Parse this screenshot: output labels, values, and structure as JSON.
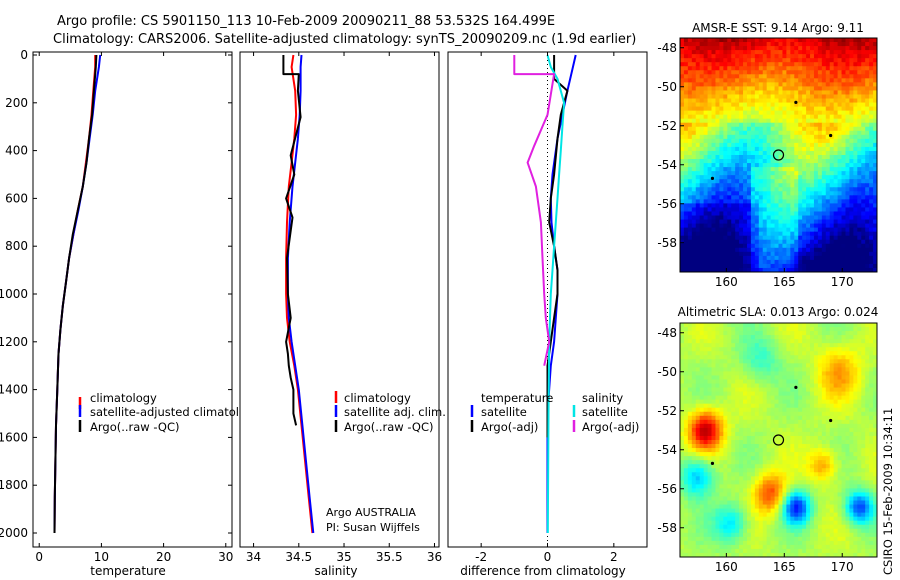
{
  "header": {
    "line1": "Argo profile: CS 5901150_113 10-Feb-2009 20090211_88 53.532S 164.499E",
    "line2": "Climatology: CARS2006. Satellite-adjusted climatology: synTS_20090209.nc (1.9d earlier)"
  },
  "side_note": "CSIRO 15-Feb-2009 10:34:11",
  "colors": {
    "climatology": "#ff0000",
    "satellite": "#0000ff",
    "argo": "#000000",
    "salinity_satellite": "#00e5e5",
    "salinity_argo": "#e020e0"
  },
  "chart_data": [
    {
      "type": "line",
      "xlabel": "temperature",
      "ylabel": "",
      "xlim": [
        -1,
        31
      ],
      "ylim": [
        2000,
        0
      ],
      "xticks": [
        0,
        10,
        20,
        30
      ],
      "yticks": [
        0,
        200,
        400,
        600,
        800,
        1000,
        1200,
        1400,
        1600,
        1800,
        2000
      ],
      "legend": [
        "climatology",
        "satellite-adjusted climatology",
        "Argo(..raw -QC)"
      ],
      "series": [
        {
          "name": "climatology",
          "color": "#ff0000",
          "x": [
            9.0,
            9.0,
            8.7,
            8.4,
            8.0,
            7.5,
            7.0,
            6.2,
            5.5,
            4.8,
            4.3,
            3.8,
            3.4,
            3.1,
            2.9,
            2.7,
            2.6,
            2.5,
            2.45
          ],
          "y": [
            0,
            50,
            150,
            250,
            350,
            450,
            550,
            650,
            750,
            850,
            950,
            1050,
            1150,
            1250,
            1400,
            1550,
            1700,
            1850,
            2000
          ]
        },
        {
          "name": "satellite-adjusted climatology",
          "color": "#0000ff",
          "x": [
            9.8,
            9.6,
            9.0,
            8.6,
            8.1,
            7.6,
            7.0,
            6.3,
            5.5,
            4.8,
            4.3,
            3.8,
            3.4,
            3.1,
            2.9,
            2.7,
            2.6,
            2.5,
            2.45
          ],
          "y": [
            0,
            50,
            150,
            250,
            350,
            450,
            550,
            650,
            750,
            850,
            950,
            1050,
            1150,
            1250,
            1400,
            1550,
            1700,
            1850,
            2000
          ]
        },
        {
          "name": "Argo(..raw -QC)",
          "color": "#000000",
          "x": [
            9.2,
            9.1,
            8.8,
            8.5,
            8.0,
            7.6,
            7.0,
            6.2,
            5.4,
            4.8,
            4.3,
            3.8,
            3.4,
            3.1,
            2.9,
            2.7,
            2.6,
            2.5,
            2.45
          ],
          "y": [
            0,
            50,
            150,
            250,
            350,
            450,
            550,
            650,
            750,
            850,
            950,
            1050,
            1150,
            1250,
            1400,
            1550,
            1700,
            1850,
            2000
          ]
        }
      ]
    },
    {
      "type": "line",
      "xlabel": "salinity",
      "ylabel": "",
      "xlim": [
        33.85,
        36.05
      ],
      "ylim": [
        2000,
        0
      ],
      "xticks": [
        34,
        34.5,
        35,
        35.5,
        36
      ],
      "xtick_labels": [
        "34",
        "34.5",
        "35",
        "35.5",
        "36"
      ],
      "legend": [
        "climatology",
        "satellite adj. clim.",
        "Argo(..raw -QC)"
      ],
      "annotations": [
        "Argo AUSTRALIA",
        "PI: Susan Wijffels"
      ],
      "series": [
        {
          "name": "climatology",
          "color": "#ff0000",
          "x": [
            34.44,
            34.42,
            34.46,
            34.47,
            34.45,
            34.42,
            34.39,
            34.37,
            34.36,
            34.36,
            34.37,
            34.4,
            34.45,
            34.49,
            34.53,
            34.57,
            34.61,
            34.65
          ],
          "y": [
            0,
            50,
            150,
            250,
            350,
            450,
            550,
            700,
            850,
            1000,
            1100,
            1200,
            1300,
            1400,
            1550,
            1700,
            1850,
            2000
          ]
        },
        {
          "name": "satellite adj. clim.",
          "color": "#0000ff",
          "x": [
            34.53,
            34.52,
            34.52,
            34.51,
            34.49,
            34.46,
            34.43,
            34.4,
            34.38,
            34.38,
            34.39,
            34.42,
            34.46,
            34.5,
            34.54,
            34.58,
            34.62,
            34.66
          ],
          "y": [
            0,
            50,
            150,
            250,
            350,
            450,
            550,
            700,
            850,
            1000,
            1100,
            1200,
            1300,
            1400,
            1550,
            1700,
            1850,
            2000
          ]
        },
        {
          "name": "Argo(..raw -QC)",
          "color": "#000000",
          "x": [
            34.33,
            34.33,
            34.5,
            34.49,
            34.52,
            34.41,
            34.45,
            34.36,
            34.43,
            34.37,
            34.38,
            34.41,
            34.36,
            34.38,
            34.39,
            34.41,
            34.44,
            34.44,
            34.47
          ],
          "y": [
            0,
            80,
            80,
            150,
            260,
            420,
            500,
            600,
            680,
            850,
            1000,
            1100,
            1200,
            1250,
            1300,
            1350,
            1400,
            1500,
            1550
          ]
        }
      ]
    },
    {
      "type": "line",
      "xlabel": "difference from climatology",
      "ylabel": "",
      "xlim": [
        -3,
        3
      ],
      "ylim": [
        2000,
        0
      ],
      "xticks": [
        -2,
        0,
        2
      ],
      "legend_groups": [
        {
          "title": "temperature",
          "entries": [
            "satellite",
            "Argo(-adj)"
          ]
        },
        {
          "title": "salinity",
          "entries": [
            "satellite",
            "Argo(-adj)"
          ]
        }
      ],
      "series": [
        {
          "name": "temperature satellite",
          "color": "#0000ff",
          "x": [
            0.85,
            0.75,
            0.6,
            0.45,
            0.3,
            0.15,
            0.1,
            0.12,
            0.2,
            0.3,
            0.3,
            0.25,
            0.2,
            0.1,
            0.0,
            0.0,
            0.0
          ],
          "y": [
            0,
            60,
            150,
            250,
            350,
            500,
            600,
            700,
            800,
            900,
            1000,
            1100,
            1200,
            1300,
            1500,
            1700,
            2000
          ]
        },
        {
          "name": "temperature Argo(-adj)",
          "color": "#000000",
          "x": [
            0.2,
            0.2,
            0.6,
            0.4,
            0.3,
            0.2,
            0.1,
            0.05,
            0.2,
            0.3,
            0.3,
            0.2,
            0.1,
            0.0,
            0.0
          ],
          "y": [
            0,
            100,
            150,
            250,
            350,
            500,
            600,
            700,
            800,
            900,
            1000,
            1100,
            1200,
            1300,
            1600
          ]
        },
        {
          "name": "salinity satellite",
          "color": "#00e5e5",
          "x": [
            0.0,
            0.1,
            0.3,
            0.5,
            0.45,
            0.4,
            0.35,
            0.3,
            0.25,
            0.2,
            0.15,
            0.1,
            0.05,
            0.03,
            0.01
          ],
          "y": [
            0,
            50,
            100,
            200,
            300,
            400,
            500,
            600,
            700,
            800,
            900,
            1000,
            1200,
            1500,
            2000
          ]
        },
        {
          "name": "salinity Argo(-adj)",
          "color": "#e020e0",
          "x": [
            -1.0,
            -1.0,
            0.2,
            0.0,
            -0.4,
            -0.6,
            -0.35,
            -0.2,
            -0.15,
            -0.1,
            -0.05,
            0.05,
            -0.1
          ],
          "y": [
            0,
            80,
            80,
            250,
            380,
            450,
            550,
            700,
            850,
            1000,
            1100,
            1200,
            1300
          ]
        }
      ]
    },
    {
      "type": "heatmap",
      "title": "AMSR-E SST: 9.14 Argo: 9.11",
      "xlim": [
        156,
        173
      ],
      "ylim": [
        -59.5,
        -47.5
      ],
      "xticks": [
        160,
        165,
        170
      ],
      "yticks": [
        -48,
        -50,
        -52,
        -54,
        -56,
        -58
      ],
      "markers": [
        {
          "lon": 164.5,
          "lat": -53.5,
          "shape": "circle"
        },
        {
          "lon": 166,
          "lat": -50.8,
          "shape": "dot"
        },
        {
          "lon": 169,
          "lat": -52.5,
          "shape": "dot"
        },
        {
          "lon": 158.8,
          "lat": -54.7,
          "shape": "dot"
        }
      ]
    },
    {
      "type": "heatmap",
      "title": "Altimetric SLA: 0.013 Argo: 0.024",
      "xlim": [
        156,
        173
      ],
      "ylim": [
        -59.5,
        -47.5
      ],
      "xticks": [
        160,
        165,
        170
      ],
      "yticks": [
        -48,
        -50,
        -52,
        -54,
        -56,
        -58
      ],
      "markers": [
        {
          "lon": 164.5,
          "lat": -53.5,
          "shape": "circle"
        },
        {
          "lon": 166,
          "lat": -50.8,
          "shape": "dot"
        },
        {
          "lon": 169,
          "lat": -52.5,
          "shape": "dot"
        },
        {
          "lon": 158.8,
          "lat": -54.7,
          "shape": "dot"
        }
      ]
    }
  ]
}
